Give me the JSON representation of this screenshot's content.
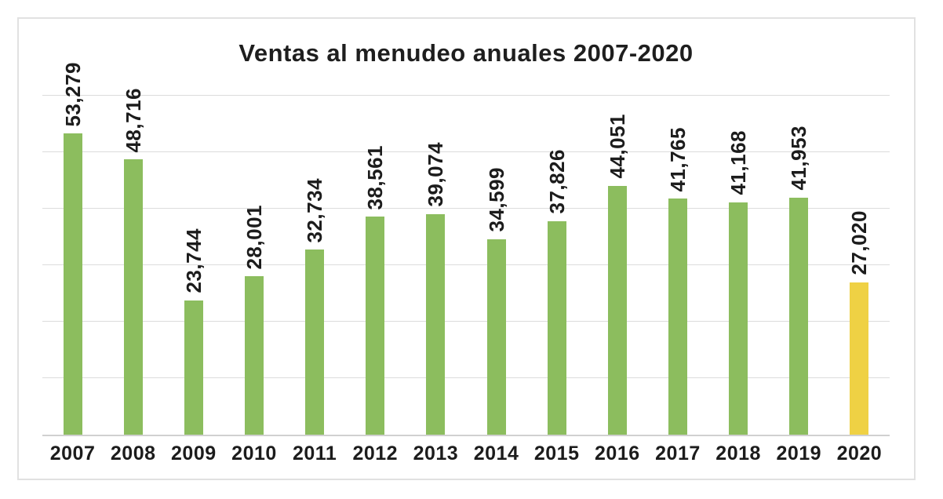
{
  "chart": {
    "colors": {
      "bar_default": "#8CBD5E",
      "bar_highlight": "#EFD144",
      "gridline": "#DCDCDC",
      "axis_line": "#D0D0D0",
      "frame_border": "#E1E1E1",
      "text": "#1C1C1C"
    }
  },
  "chart_data": {
    "type": "bar",
    "title": "Ventas al menudeo anuales 2007-2020",
    "categories": [
      "2007",
      "2008",
      "2009",
      "2010",
      "2011",
      "2012",
      "2013",
      "2014",
      "2015",
      "2016",
      "2017",
      "2018",
      "2019",
      "2020"
    ],
    "values": [
      53279,
      48716,
      23744,
      28001,
      32734,
      38561,
      39074,
      34599,
      37826,
      44051,
      41765,
      41168,
      41953,
      27020
    ],
    "value_labels": [
      "53,279",
      "48,716",
      "23,744",
      "28,001",
      "32,734",
      "38,561",
      "39,074",
      "34,599",
      "37,826",
      "44,051",
      "41,765",
      "41,168",
      "41,953",
      "27,020"
    ],
    "highlight_index": 13,
    "xlabel": "",
    "ylabel": "",
    "ylim": [
      0,
      60000
    ],
    "gridline_interval": 10000,
    "grid": true,
    "legend": false,
    "value_label_rotation": 90
  }
}
